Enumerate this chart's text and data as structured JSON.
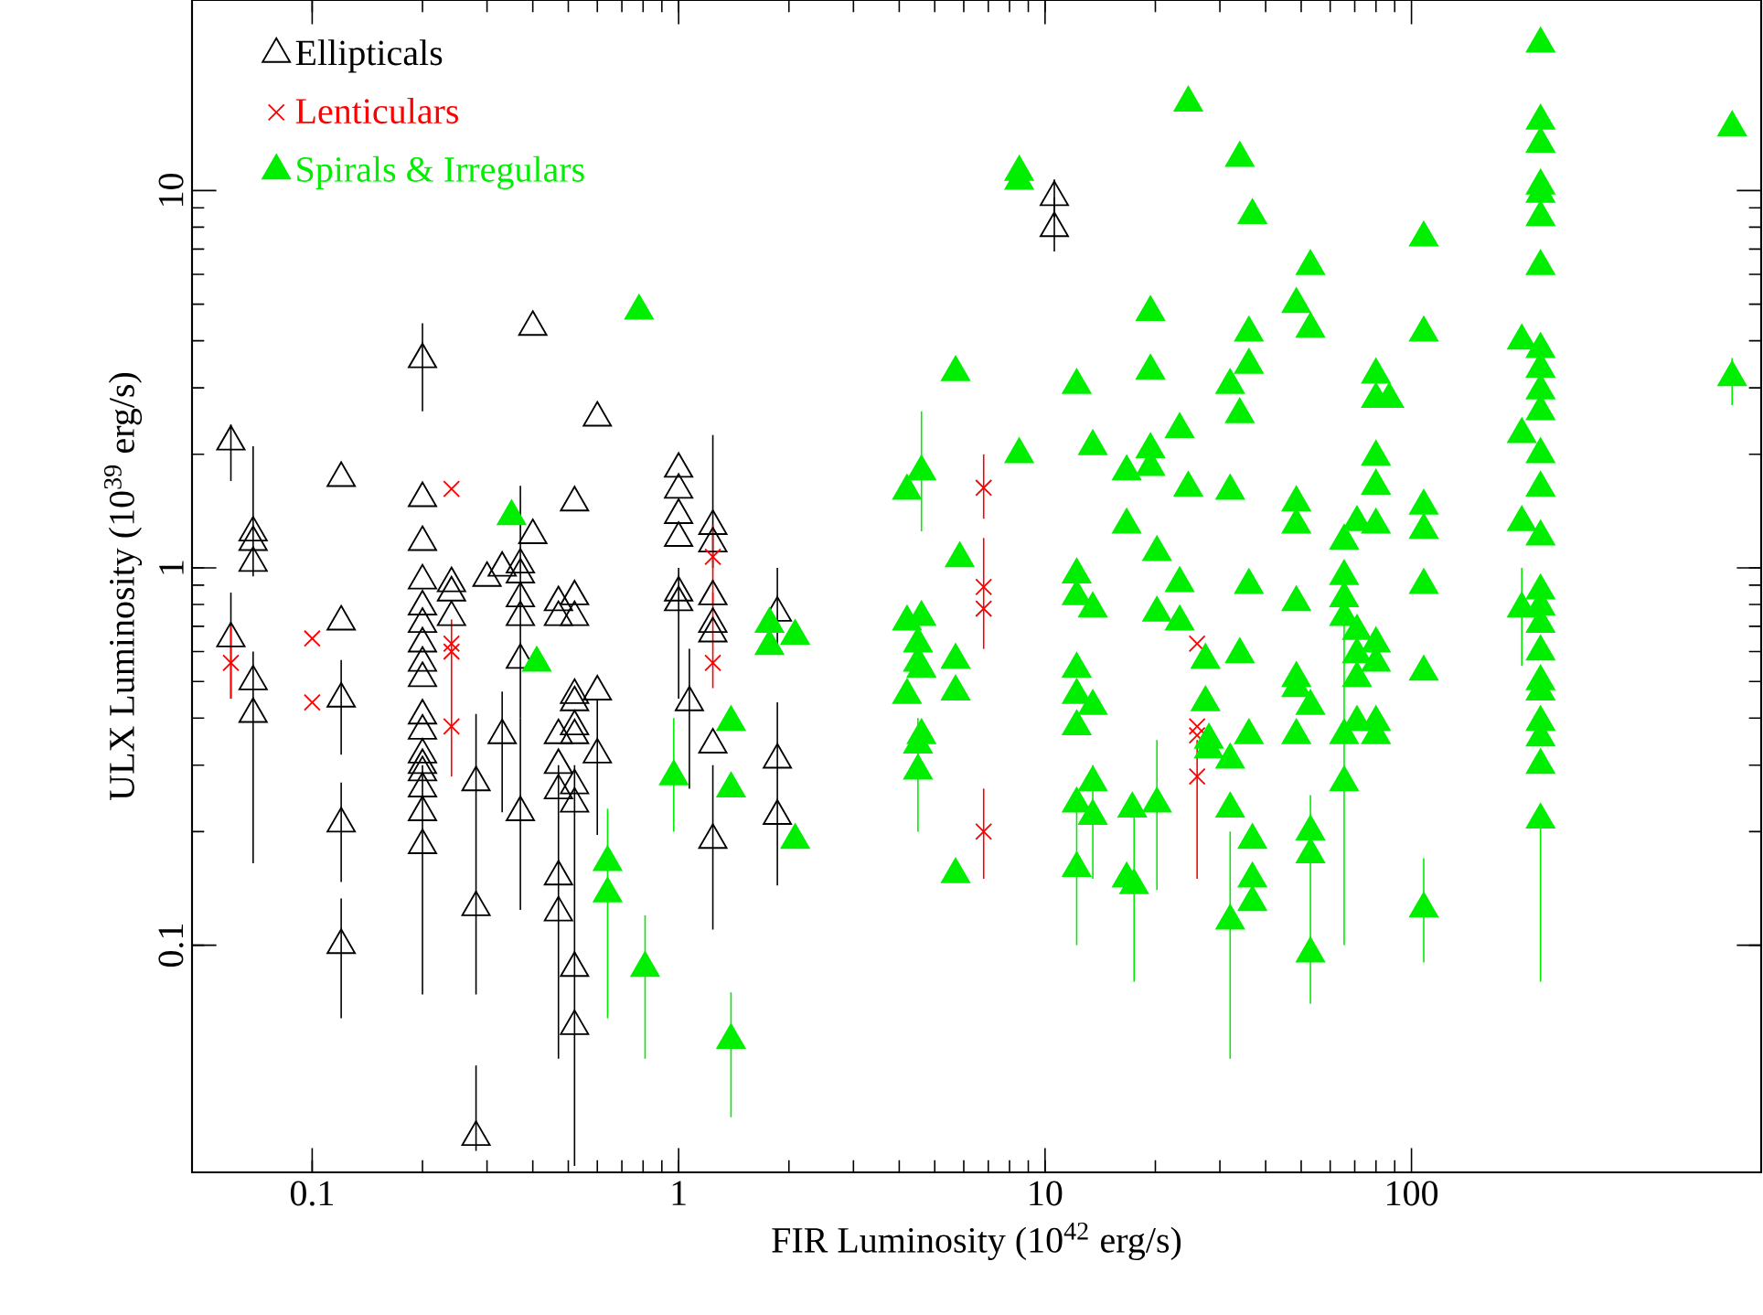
{
  "chart_data": {
    "type": "scatter",
    "xlabel": "FIR Luminosity (10$^{42}$ erg/s)",
    "ylabel": "ULX Luminosity (10$^{39}$ erg/s)",
    "log": "xy",
    "xlim": [
      0.047,
      900
    ],
    "ylim": [
      0.025,
      32
    ],
    "xticks": [
      0.1,
      1,
      10,
      100
    ],
    "yticks": [
      0.1,
      1,
      10
    ],
    "legend": "top left",
    "series": [
      {
        "name": "Ellipticals",
        "color": "#000000",
        "marker": "triangle",
        "x": [
          0.06,
          0.06,
          0.069,
          0.069,
          0.069,
          0.069,
          0.069,
          0.12,
          0.12,
          0.12,
          0.12,
          0.12,
          0.2,
          0.2,
          0.2,
          0.2,
          0.2,
          0.2,
          0.2,
          0.2,
          0.2,
          0.2,
          0.2,
          0.2,
          0.2,
          0.2,
          0.2,
          0.2,
          0.2,
          0.24,
          0.24,
          0.24,
          0.28,
          0.28,
          0.28,
          0.3,
          0.33,
          0.33,
          0.37,
          0.37,
          0.37,
          0.37,
          0.37,
          0.37,
          0.4,
          0.4,
          0.52,
          0.52,
          0.52,
          0.52,
          0.52,
          0.52,
          0.52,
          0.52,
          0.52,
          0.52,
          0.52,
          0.47,
          0.47,
          0.47,
          0.47,
          0.47,
          0.47,
          0.47,
          0.6,
          0.6,
          0.6,
          1.0,
          1.0,
          1.0,
          1.0,
          1.0,
          1.0,
          1.07,
          1.24,
          1.24,
          1.24,
          1.24,
          1.24,
          1.24,
          1.24,
          1.86,
          1.86,
          1.86,
          10.6,
          10.6
        ],
        "values": [
          2.16,
          0.65,
          1.24,
          1.17,
          1.03,
          0.5,
          0.41,
          1.73,
          0.72,
          0.45,
          0.21,
          0.1,
          3.57,
          1.53,
          1.17,
          0.925,
          0.79,
          0.71,
          0.63,
          0.56,
          0.51,
          0.406,
          0.37,
          0.32,
          0.3,
          0.287,
          0.26,
          0.225,
          0.184,
          0.91,
          0.86,
          0.74,
          0.27,
          0.126,
          0.031,
          0.94,
          1.0,
          0.36,
          1.02,
          0.96,
          0.83,
          0.74,
          0.57,
          0.225,
          1.22,
          4.35,
          1.49,
          0.84,
          0.74,
          0.46,
          0.44,
          0.38,
          0.36,
          0.265,
          0.237,
          0.087,
          0.061,
          0.81,
          0.74,
          0.36,
          0.3,
          0.257,
          0.152,
          0.122,
          2.5,
          0.47,
          0.32,
          1.83,
          1.61,
          1.38,
          1.2,
          0.86,
          0.81,
          0.44,
          1.29,
          1.16,
          0.84,
          0.71,
          0.67,
          0.34,
          0.19,
          0.76,
          0.31,
          0.22,
          9.6,
          7.95
        ],
        "errors": [
          [
            1.7,
            2.4
          ],
          [
            0.45,
            0.86
          ],
          [
            0.95,
            2.1
          ],
          null,
          null,
          null,
          [
            0.165,
            0.6
          ],
          null,
          null,
          [
            0.32,
            0.57
          ],
          [
            0.147,
            0.27
          ],
          [
            0.064,
            0.133
          ],
          [
            2.6,
            4.45
          ],
          null,
          null,
          null,
          null,
          null,
          null,
          null,
          null,
          null,
          null,
          null,
          null,
          null,
          null,
          null,
          [
            0.074,
            0.3
          ],
          null,
          null,
          null,
          [
            0.074,
            0.41
          ],
          null,
          [
            0.0285,
            0.048
          ],
          null,
          null,
          [
            0.225,
            0.47
          ],
          null,
          null,
          null,
          null,
          [
            0.4,
            1.65
          ],
          [
            0.124,
            0.4
          ],
          null,
          null,
          null,
          null,
          null,
          null,
          null,
          null,
          null,
          null,
          null,
          null,
          [
            0.026,
            0.3
          ],
          null,
          null,
          null,
          null,
          null,
          null,
          [
            0.05,
            0.3
          ],
          null,
          null,
          [
            0.196,
            0.45
          ],
          null,
          null,
          null,
          null,
          null,
          [
            0.45,
            1.0
          ],
          [
            0.26,
            0.61
          ],
          [
            1.0,
            2.25
          ],
          null,
          null,
          null,
          null,
          null,
          [
            0.11,
            0.3
          ],
          [
            0.6,
            1.0
          ],
          [
            0.144,
            0.44
          ],
          null,
          [
            8.5,
            10.7
          ],
          [
            6.9,
            9.6
          ]
        ]
      },
      {
        "name": "Lenticulars",
        "color": "#ff0000",
        "marker": "cross",
        "x": [
          0.06,
          0.1,
          0.1,
          0.24,
          0.24,
          0.24,
          0.24,
          1.24,
          1.24,
          6.8,
          6.8,
          6.8,
          6.8,
          26,
          26,
          26,
          26
        ],
        "values": [
          0.56,
          0.65,
          0.44,
          1.62,
          0.63,
          0.6,
          0.38,
          1.07,
          0.56,
          1.63,
          0.89,
          0.78,
          0.2,
          0.63,
          0.38,
          0.36,
          0.28
        ],
        "errors": [
          [
            0.45,
            0.7
          ],
          null,
          null,
          null,
          [
            0.28,
            0.73
          ],
          null,
          null,
          [
            0.8,
            1.3
          ],
          [
            0.48,
            0.86
          ],
          [
            1.35,
            2.0
          ],
          [
            0.61,
            1.2
          ],
          null,
          [
            0.15,
            0.26
          ],
          null,
          null,
          null,
          [
            0.15,
            0.35
          ]
        ]
      },
      {
        "name": "Spirals & Irregulars",
        "color": "#00ee00",
        "marker": "triangle",
        "x": [
          0.78,
          0.35,
          0.41,
          0.64,
          0.64,
          0.81,
          0.97,
          1.39,
          1.39,
          1.39,
          1.77,
          1.77,
          2.08,
          2.08,
          4.2,
          4.6,
          4.2,
          4.6,
          4.5,
          4.5,
          4.6,
          4.2,
          4.6,
          4.5,
          4.5,
          5.7,
          5.85,
          5.7,
          5.7,
          5.7,
          8.5,
          8.5,
          8.5,
          12.2,
          12.2,
          12.2,
          12.2,
          12.2,
          12.2,
          12.2,
          12.2,
          13.5,
          13.5,
          13.5,
          13.5,
          13.5,
          16.7,
          16.7,
          17.3,
          16.7,
          17.5,
          19.4,
          19.4,
          19.4,
          19.4,
          20.2,
          20.2,
          20.2,
          24.6,
          23.3,
          24.6,
          23.3,
          23.3,
          27.4,
          27.4,
          28,
          28,
          32,
          34,
          32,
          34,
          32,
          36,
          36,
          36.8,
          36,
          34,
          36,
          36.8,
          36.8,
          36.8,
          32,
          32,
          53,
          48.5,
          53,
          80,
          80,
          87,
          80,
          80,
          80,
          71,
          65.5,
          65.5,
          65.5,
          65.5,
          71,
          80,
          71,
          80,
          71,
          71,
          65.5,
          80,
          80,
          65.5,
          48.5,
          48.5,
          48.5,
          48.5,
          48.5,
          53,
          48.5,
          53,
          53,
          53,
          108,
          108,
          108,
          108,
          108,
          108,
          108,
          200,
          200,
          200,
          200,
          225,
          225,
          225,
          225,
          225,
          225,
          225,
          225,
          225,
          225,
          225,
          225,
          225,
          225,
          225,
          225,
          225,
          225,
          225,
          225,
          225,
          225,
          225,
          225,
          750,
          750
        ],
        "values": [
          4.8,
          1.37,
          0.56,
          0.166,
          0.137,
          0.087,
          0.28,
          0.39,
          0.26,
          0.056,
          0.71,
          0.62,
          0.66,
          0.19,
          1.6,
          1.8,
          0.72,
          0.74,
          0.63,
          0.56,
          0.54,
          0.46,
          0.36,
          0.34,
          0.29,
          3.3,
          1.06,
          0.57,
          0.47,
          0.154,
          11.2,
          10.6,
          2.0,
          3.05,
          0.96,
          0.84,
          0.54,
          0.46,
          0.38,
          0.237,
          0.16,
          2.1,
          0.78,
          0.43,
          0.27,
          0.22,
          1.8,
          1.3,
          0.23,
          0.15,
          0.144,
          4.76,
          3.33,
          2.06,
          1.85,
          1.1,
          0.76,
          0.237,
          17.1,
          2.33,
          1.63,
          0.91,
          0.72,
          0.57,
          0.44,
          0.35,
          0.33,
          0.116,
          12.2,
          3.05,
          2.55,
          1.6,
          4.2,
          3.45,
          8.6,
          0.9,
          0.59,
          0.36,
          0.19,
          0.15,
          0.13,
          0.23,
          0.31,
          6.3,
          5.0,
          4.3,
          3.25,
          2.8,
          2.8,
          1.97,
          1.65,
          1.3,
          1.32,
          1.18,
          0.95,
          0.83,
          0.74,
          0.68,
          0.63,
          0.59,
          0.56,
          0.51,
          0.39,
          0.36,
          0.39,
          0.36,
          0.27,
          1.49,
          1.3,
          0.81,
          0.51,
          0.48,
          0.43,
          0.36,
          0.2,
          0.174,
          0.095,
          7.5,
          4.2,
          1.46,
          1.26,
          0.9,
          0.53,
          0.125,
          4.0,
          2.26,
          1.32,
          0.78,
          24.5,
          15.3,
          13.3,
          10.3,
          9.8,
          8.5,
          6.3,
          3.8,
          3.37,
          2.95,
          2.6,
          2.0,
          1.63,
          1.21,
          0.87,
          0.79,
          0.71,
          0.6,
          0.5,
          0.47,
          0.39,
          0.355,
          0.3,
          0.215,
          14.7,
          3.2
        ],
        "errors": [
          null,
          null,
          null,
          null,
          [
            0.064,
            0.23
          ],
          [
            0.05,
            0.12
          ],
          [
            0.2,
            0.4
          ],
          null,
          null,
          [
            0.035,
            0.075
          ],
          null,
          null,
          null,
          null,
          null,
          [
            1.25,
            2.6
          ],
          null,
          null,
          null,
          null,
          null,
          null,
          null,
          null,
          [
            0.2,
            0.4
          ],
          null,
          null,
          null,
          null,
          null,
          null,
          null,
          null,
          null,
          null,
          null,
          null,
          null,
          null,
          null,
          [
            0.1,
            0.25
          ],
          null,
          null,
          null,
          null,
          [
            0.15,
            0.3
          ],
          null,
          null,
          null,
          null,
          [
            0.08,
            0.24
          ],
          null,
          null,
          null,
          null,
          null,
          null,
          [
            0.14,
            0.35
          ],
          null,
          null,
          null,
          null,
          null,
          null,
          null,
          null,
          null,
          [
            0.05,
            0.2
          ],
          null,
          null,
          null,
          null,
          null,
          null,
          null,
          null,
          null,
          null,
          null,
          null,
          null,
          null,
          null,
          null,
          null,
          null,
          null,
          null,
          null,
          null,
          null,
          null,
          null,
          null,
          null,
          null,
          null,
          null,
          null,
          null,
          null,
          null,
          null,
          null,
          null,
          null,
          [
            0.1,
            0.8
          ],
          null,
          null,
          null,
          null,
          null,
          null,
          null,
          null,
          null,
          [
            0.07,
            0.25
          ],
          null,
          null,
          null,
          null,
          null,
          null,
          [
            0.09,
            0.17
          ],
          null,
          null,
          null,
          [
            0.55,
            1.0
          ],
          null,
          null,
          null,
          null,
          null,
          null,
          null,
          null,
          null,
          null,
          null,
          null,
          null,
          null,
          null,
          null,
          null,
          null,
          null,
          null,
          null,
          null,
          null,
          [
            0.08,
            0.215
          ],
          null,
          [
            2.7,
            3.6
          ]
        ]
      }
    ]
  }
}
